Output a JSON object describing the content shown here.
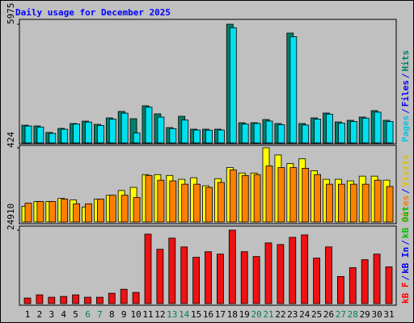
{
  "chart_data": {
    "type": "bar",
    "title": "Daily usage for December 2025",
    "categories": [
      "1",
      "2",
      "3",
      "4",
      "5",
      "6",
      "7",
      "8",
      "9",
      "10",
      "11",
      "12",
      "13",
      "14",
      "15",
      "16",
      "17",
      "18",
      "19",
      "20",
      "21",
      "22",
      "23",
      "24",
      "25",
      "26",
      "27",
      "28",
      "29",
      "30",
      "31"
    ],
    "weekday_color": "#000000",
    "weekend_color": "#008060",
    "weekends": [
      5,
      6,
      12,
      13,
      19,
      20,
      26,
      27
    ],
    "panels": [
      {
        "ylim": [
          0,
          5975
        ],
        "yticks": [
          5975
        ],
        "legend": [
          {
            "text": "Pages",
            "color": "#00c8e8"
          },
          {
            "text": "/",
            "color": "#0000ff"
          },
          {
            "text": "Files",
            "color": "#0000ff"
          },
          {
            "text": "/",
            "color": "#0000ff"
          },
          {
            "text": "Hits",
            "color": "#008060"
          }
        ],
        "series": [
          {
            "color": "#00806b",
            "values": [
              894,
              854,
              528,
              732,
              976,
              1097,
              935,
              1260,
              1585,
              1219,
              1870,
              1463,
              772,
              1341,
              691,
              691,
              691,
              5975,
              1016,
              1016,
              1179,
              976,
              5528,
              976,
              1260,
              1504,
              1057,
              1138,
              1301,
              1626,
              1138
            ]
          },
          {
            "color": "#00e0f0",
            "values": [
              850,
              800,
              480,
              690,
              950,
              1050,
              880,
              1200,
              1500,
              500,
              1800,
              1300,
              720,
              1150,
              650,
              640,
              650,
              5800,
              950,
              980,
              1100,
              920,
              5350,
              900,
              1200,
              1450,
              1000,
              1080,
              1250,
              1550,
              1080
            ]
          }
        ]
      },
      {
        "ylim": [
          0,
          424
        ],
        "yticks": [
          424
        ],
        "legend": [
          {
            "text": "Sites",
            "color": "#ff8000"
          },
          {
            "text": "/",
            "color": "#0000ff"
          },
          {
            "text": "Visits",
            "color": "#e0c000"
          }
        ],
        "series": [
          {
            "color": "#ffff00",
            "values": [
              90,
              117,
              117,
              135,
              126,
              86,
              131,
              153,
              180,
              198,
              271,
              271,
              266,
              244,
              253,
              207,
              248,
              311,
              280,
              280,
              424,
              383,
              334,
              361,
              293,
              244,
              244,
              235,
              262,
              262,
              239
            ]
          },
          {
            "color": "#ff8000",
            "values": [
              108,
              117,
              117,
              131,
              104,
              104,
              131,
              153,
              153,
              140,
              266,
              239,
              235,
              216,
              216,
              198,
              226,
              298,
              266,
              271,
              320,
              311,
              311,
              307,
              271,
              216,
              216,
              216,
              216,
              239,
              203
            ]
          }
        ]
      },
      {
        "ylim": [
          0,
          24910
        ],
        "yticks": [
          24910
        ],
        "legend": [
          {
            "text": "kB F",
            "color": "#ff0000"
          },
          {
            "text": "/",
            "color": "#0000ff"
          },
          {
            "text": "kB In",
            "color": "#0000ff"
          },
          {
            "text": "/",
            "color": "#0000ff"
          },
          {
            "text": "kB Out",
            "color": "#00c000"
          }
        ],
        "series": [
          {
            "color": "#ee1111",
            "values": [
              1896,
              2979,
              2166,
              2437,
              2979,
              2166,
              2166,
              3520,
              4874,
              3791,
              23560,
              18414,
              22205,
              19227,
              15706,
              17602,
              16790,
              24910,
              17602,
              15977,
              20581,
              20039,
              22476,
              23289,
              15436,
              19227,
              9207,
              12186,
              14894,
              16790,
              12457
            ]
          }
        ]
      }
    ]
  }
}
